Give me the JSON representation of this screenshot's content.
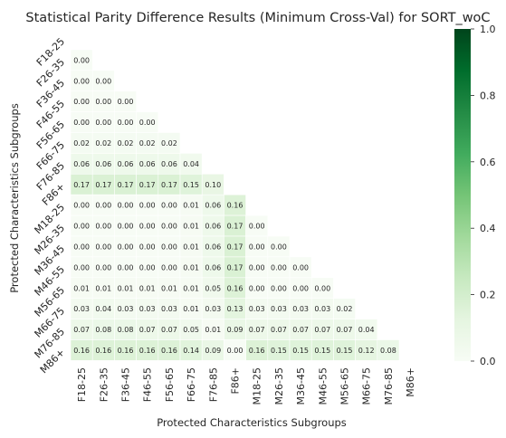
{
  "chart_data": {
    "type": "heatmap",
    "title": "Statistical Parity Difference Results (Minimum Cross-Val) for SORT_woC",
    "xlabel": "Protected Characteristics Subgroups",
    "ylabel": "Protected Characteristics Subgroups",
    "categories": [
      "F18-25",
      "F26-35",
      "F36-45",
      "F46-55",
      "F56-65",
      "F66-75",
      "F76-85",
      "F86+",
      "M18-25",
      "M26-35",
      "M36-45",
      "M46-55",
      "M56-65",
      "M66-75",
      "M76-85",
      "M86+"
    ],
    "mask": "upper-triangle-including-diagonal",
    "rows": [
      [],
      [
        "0.00"
      ],
      [
        "0.00",
        "0.00"
      ],
      [
        "0.00",
        "0.00",
        "0.00"
      ],
      [
        "0.00",
        "0.00",
        "0.00",
        "0.00"
      ],
      [
        "0.02",
        "0.02",
        "0.02",
        "0.02",
        "0.02"
      ],
      [
        "0.06",
        "0.06",
        "0.06",
        "0.06",
        "0.06",
        "0.04"
      ],
      [
        "0.17",
        "0.17",
        "0.17",
        "0.17",
        "0.17",
        "0.15",
        "0.10"
      ],
      [
        "0.00",
        "0.00",
        "0.00",
        "0.00",
        "0.00",
        "0.01",
        "0.06",
        "0.16"
      ],
      [
        "0.00",
        "0.00",
        "0.00",
        "0.00",
        "0.00",
        "0.01",
        "0.06",
        "0.17",
        "0.00"
      ],
      [
        "0.00",
        "0.00",
        "0.00",
        "0.00",
        "0.00",
        "0.01",
        "0.06",
        "0.17",
        "0.00",
        "0.00"
      ],
      [
        "0.00",
        "0.00",
        "0.00",
        "0.00",
        "0.00",
        "0.01",
        "0.06",
        "0.17",
        "0.00",
        "0.00",
        "0.00"
      ],
      [
        "0.01",
        "0.01",
        "0.01",
        "0.01",
        "0.01",
        "0.01",
        "0.05",
        "0.16",
        "0.00",
        "0.00",
        "0.00",
        "0.00"
      ],
      [
        "0.03",
        "0.04",
        "0.03",
        "0.03",
        "0.03",
        "0.01",
        "0.03",
        "0.13",
        "0.03",
        "0.03",
        "0.03",
        "0.03",
        "0.02"
      ],
      [
        "0.07",
        "0.08",
        "0.08",
        "0.07",
        "0.07",
        "0.05",
        "0.01",
        "0.09",
        "0.07",
        "0.07",
        "0.07",
        "0.07",
        "0.07",
        "0.04"
      ],
      [
        "0.16",
        "0.16",
        "0.16",
        "0.16",
        "0.16",
        "0.14",
        "0.09",
        "0.00",
        "0.16",
        "0.15",
        "0.15",
        "0.15",
        "0.15",
        "0.12",
        "0.08"
      ]
    ],
    "colorbar": {
      "range": [
        0.0,
        1.0
      ],
      "ticks": [
        "0.0",
        "0.2",
        "0.4",
        "0.6",
        "0.8",
        "1.0"
      ]
    },
    "colormap": "Greens"
  }
}
